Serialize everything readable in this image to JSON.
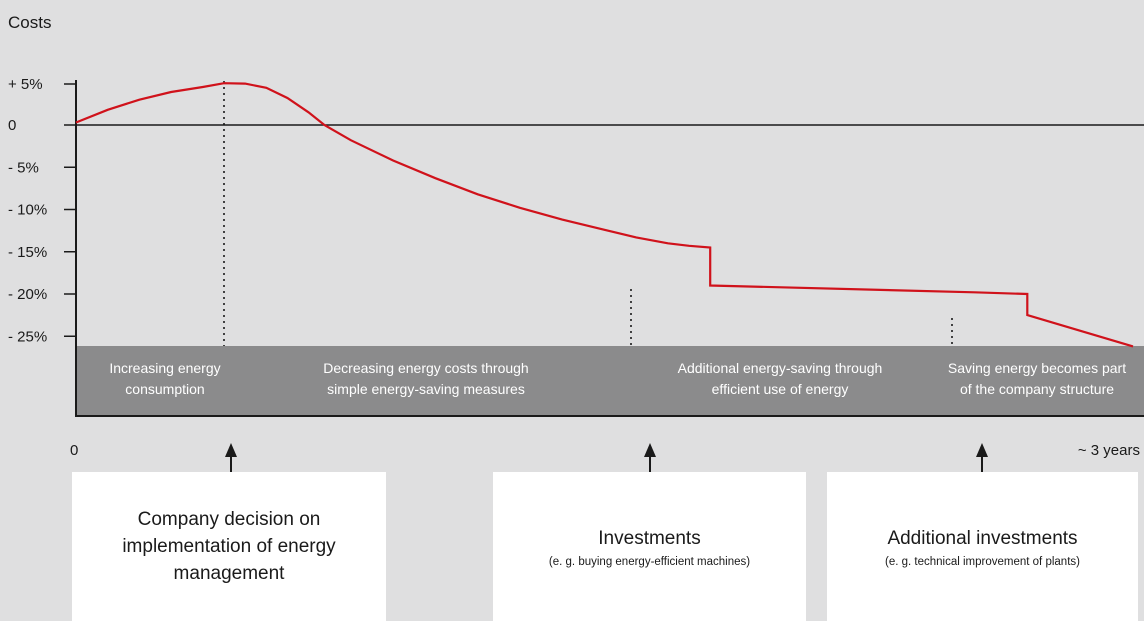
{
  "chart_data": {
    "type": "line",
    "ylabel": "Costs",
    "yticks": [
      "+ 5%",
      "0",
      "- 5%",
      "- 10%",
      "- 15%",
      "- 20%",
      "- 25%"
    ],
    "ytick_values": [
      5,
      0,
      -5,
      -10,
      -15,
      -20,
      -25
    ],
    "ylim": [
      -25,
      5
    ],
    "xlim": [
      0,
      1
    ],
    "x_start_label": "0",
    "x_end_label": "~ 3 years",
    "grid": false,
    "series": [
      {
        "color": "#d0121b",
        "points": [
          [
            0,
            0.3
          ],
          [
            0.03,
            1.8
          ],
          [
            0.06,
            3.0
          ],
          [
            0.09,
            3.9
          ],
          [
            0.12,
            4.5
          ],
          [
            0.14,
            4.95
          ],
          [
            0.16,
            4.9
          ],
          [
            0.18,
            4.4
          ],
          [
            0.2,
            3.2
          ],
          [
            0.22,
            1.5
          ],
          [
            0.235,
            0.0
          ],
          [
            0.26,
            -1.8
          ],
          [
            0.3,
            -4.2
          ],
          [
            0.34,
            -6.3
          ],
          [
            0.38,
            -8.2
          ],
          [
            0.42,
            -9.8
          ],
          [
            0.46,
            -11.2
          ],
          [
            0.5,
            -12.4
          ],
          [
            0.53,
            -13.3
          ],
          [
            0.56,
            -14.0
          ],
          [
            0.58,
            -14.3
          ],
          [
            0.6,
            -14.5
          ],
          [
            0.6,
            -19.0
          ],
          [
            0.85,
            -19.8
          ],
          [
            0.9,
            -20.0
          ],
          [
            0.9,
            -22.5
          ],
          [
            1.0,
            -26.2
          ]
        ]
      }
    ],
    "phases": [
      {
        "line1": "Increasing energy",
        "line2": "consumption"
      },
      {
        "line1": "Decreasing energy costs through",
        "line2": "simple energy-saving measures"
      },
      {
        "line1": "Additional energy-saving through",
        "line2": "efficient use of energy"
      },
      {
        "line1": "Saving energy becomes part",
        "line2": "of the company structure"
      }
    ],
    "phase_color": "#8b8b8c",
    "background": "#dfdfe0"
  },
  "boxes": [
    {
      "title": "Company decision on implementation of energy management",
      "subtitle": ""
    },
    {
      "title": "Investments",
      "subtitle": "(e. g. buying energy-efficient machines)"
    },
    {
      "title": "Additional investments",
      "subtitle": "(e. g. technical improvement of plants)"
    }
  ]
}
